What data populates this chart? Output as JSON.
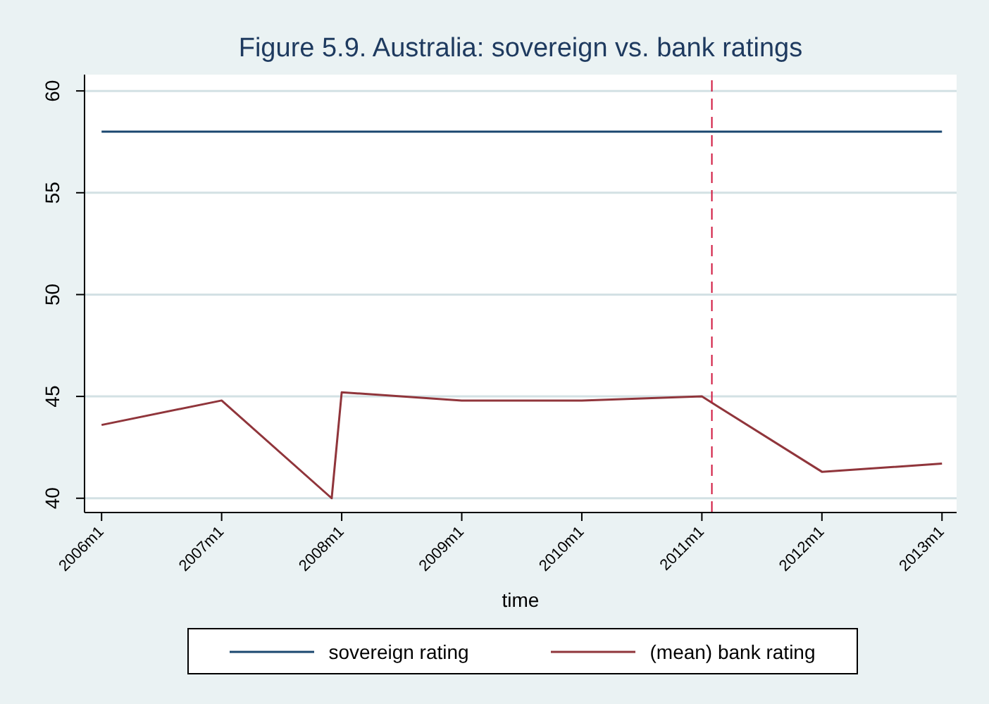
{
  "chart_data": {
    "type": "line",
    "title": "Figure 5.9. Australia: sovereign vs. bank ratings",
    "xlabel": "time",
    "series": [
      {
        "name": "sovereign rating",
        "color": "#1a476f",
        "x": [
          "2006-01",
          "2013-01"
        ],
        "values": [
          58,
          58
        ]
      },
      {
        "name": "(mean) bank rating",
        "color": "#90353b",
        "x": [
          "2006-01",
          "2007-01",
          "2007-12",
          "2008-01",
          "2009-01",
          "2010-01",
          "2011-01",
          "2012-01",
          "2013-01"
        ],
        "values": [
          43.6,
          44.8,
          40,
          45.2,
          44.8,
          44.8,
          45,
          41.3,
          41.7
        ]
      }
    ],
    "xlim": [
      "2005-11-10",
      "2013-02-15"
    ],
    "xticks": [
      {
        "value": "2006-01",
        "label": "2006m1"
      },
      {
        "value": "2007-01",
        "label": "2007m1"
      },
      {
        "value": "2008-01",
        "label": "2008m1"
      },
      {
        "value": "2009-01",
        "label": "2009m1"
      },
      {
        "value": "2010-01",
        "label": "2010m1"
      },
      {
        "value": "2011-01",
        "label": "2011m1"
      },
      {
        "value": "2012-01",
        "label": "2012m1"
      },
      {
        "value": "2013-01",
        "label": "2013m1"
      }
    ],
    "ylim": [
      39.3,
      60.8
    ],
    "yticks": [
      40,
      45,
      50,
      55,
      60
    ],
    "ref_lines": [
      {
        "axis": "x",
        "value": "2011-02",
        "color": "#d0153c",
        "line_style": "dashed"
      }
    ],
    "grid": "y",
    "legend": "bottom",
    "marker": "none",
    "line_style": "solid"
  }
}
